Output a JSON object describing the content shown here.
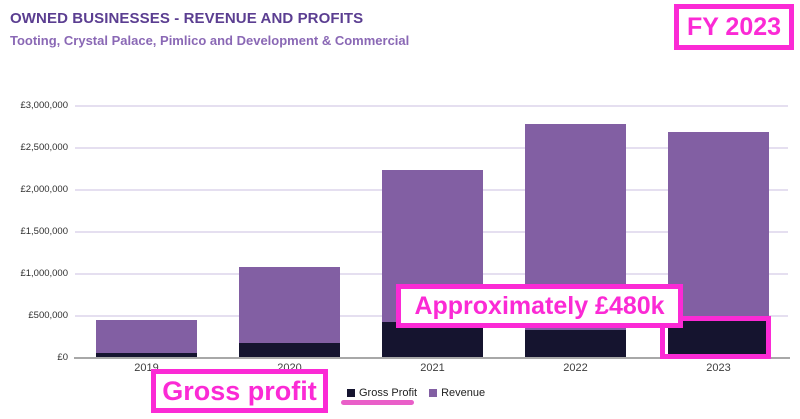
{
  "header": {
    "title": "OWNED BUSINESSES - REVENUE AND PROFITS",
    "subtitle": "Tooting, Crystal Palace, Pimlico and Development & Commercial"
  },
  "annotations": {
    "fy_badge": "FY 2023",
    "approx_label": "Approximately £480k",
    "gross_profit_label": "Gross profit",
    "highlight_target": "2023 gross profit bar segment"
  },
  "colors": {
    "title_text": "#5b3e91",
    "subtitle_text": "#8a68b5",
    "revenue_bar": "#825fa3",
    "gross_profit_bar": "#15142f",
    "annotation_magenta": "#fb2ad5",
    "legend_underline_pink": "#e95fc8",
    "gridline": "#e5dff0",
    "axis_line": "#a8a8a8"
  },
  "chart_data": {
    "type": "bar",
    "bar_style": "overlapped",
    "categories": [
      "2019",
      "2020",
      "2021",
      "2022",
      "2023"
    ],
    "series": [
      {
        "name": "Gross Profit",
        "color": "#15142f",
        "values": [
          60000,
          180000,
          430000,
          330000,
          480000
        ]
      },
      {
        "name": "Revenue",
        "color": "#825fa3",
        "values": [
          450000,
          1080000,
          2240000,
          2780000,
          2690000
        ]
      }
    ],
    "title": "OWNED BUSINESSES - REVENUE AND PROFITS",
    "xlabel": "",
    "ylabel": "",
    "ylim": [
      0,
      3000000
    ],
    "ytick_step": 500000,
    "yticks": [
      "£0",
      "£500,000",
      "£1,000,000",
      "£1,500,000",
      "£2,000,000",
      "£2,500,000",
      "£3,000,000"
    ],
    "grid": true,
    "legend_position": "bottom"
  }
}
